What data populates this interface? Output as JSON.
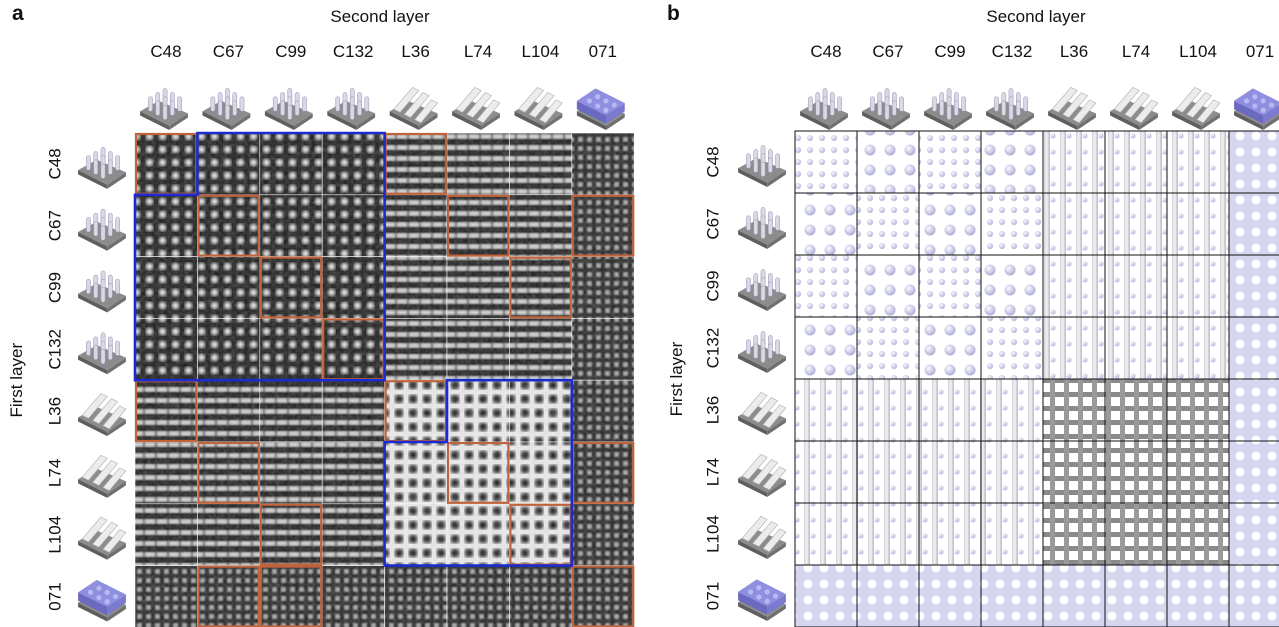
{
  "panels": [
    {
      "label": "a",
      "column_header": "Second layer",
      "row_header": "First layer",
      "columns": [
        "C48",
        "C67",
        "C99",
        "C132",
        "L36",
        "L74",
        "L104",
        "071"
      ],
      "rows": [
        "C48",
        "C67",
        "C99",
        "C132",
        "L36",
        "L74",
        "L104",
        "071"
      ]
    },
    {
      "label": "b",
      "column_header": "Second layer",
      "row_header": "First layer",
      "columns": [
        "C48",
        "C67",
        "C99",
        "C132",
        "L36",
        "L74",
        "L104",
        "071"
      ],
      "rows": [
        "C48",
        "C67",
        "C99",
        "C132",
        "L36",
        "L74",
        "L104",
        "071"
      ]
    }
  ]
}
